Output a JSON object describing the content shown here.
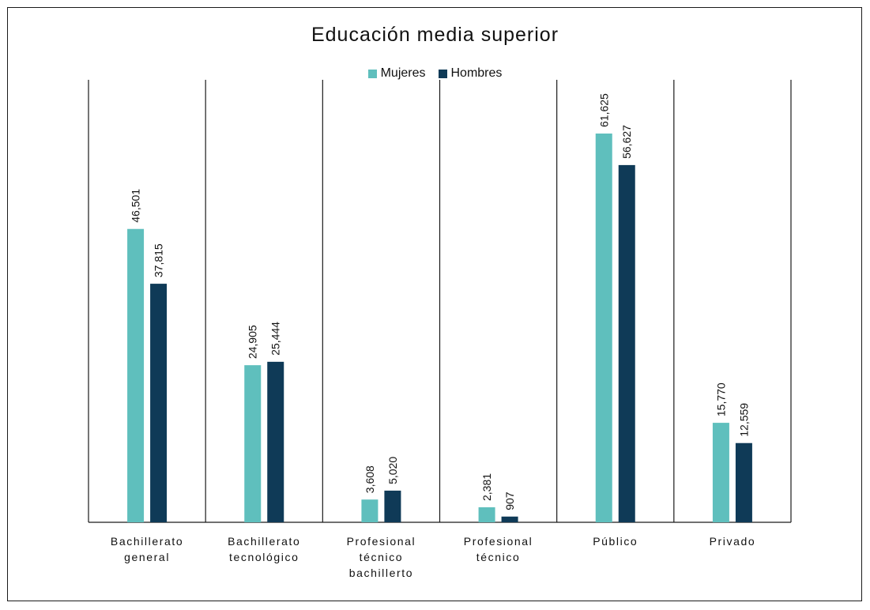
{
  "chart_data": {
    "type": "bar",
    "title": "Educación media superior",
    "categories": [
      [
        "Bachillerato",
        "general"
      ],
      [
        "Bachillerato",
        "tecnológico"
      ],
      [
        "Profesional",
        "técnico",
        "bachillerto"
      ],
      [
        "Profesional",
        "técnico"
      ],
      [
        "Público"
      ],
      [
        "Privado"
      ]
    ],
    "series": [
      {
        "name": "Mujeres",
        "color": "#5fbfbd",
        "values": [
          46501,
          24905,
          3608,
          2381,
          61625,
          15770
        ],
        "labels": [
          "46,501",
          "24,905",
          "3,608",
          "2,381",
          "61,625",
          "15,770"
        ]
      },
      {
        "name": "Hombres",
        "color": "#0f3a57",
        "values": [
          37815,
          25444,
          5020,
          907,
          56627,
          12559
        ],
        "labels": [
          "37,815",
          "25,444",
          "5,020",
          "907",
          "56,627",
          "12,559"
        ]
      }
    ],
    "ylim": [
      0,
      70000
    ],
    "legend_position": "top-center",
    "category_separators": true
  }
}
